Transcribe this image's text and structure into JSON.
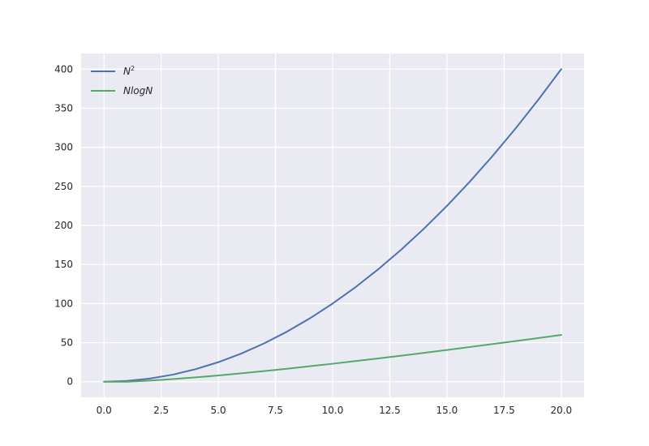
{
  "chart_data": {
    "type": "line",
    "title": "",
    "xlabel": "",
    "ylabel": "",
    "xlim": [
      -1,
      21
    ],
    "ylim": [
      -20,
      420
    ],
    "x_ticks": [
      0,
      2.5,
      5,
      7.5,
      10,
      12.5,
      15,
      17.5,
      20
    ],
    "x_tick_labels": [
      "0.0",
      "2.5",
      "5.0",
      "7.5",
      "10.0",
      "12.5",
      "15.0",
      "17.5",
      "20.0"
    ],
    "y_ticks": [
      0,
      50,
      100,
      150,
      200,
      250,
      300,
      350,
      400
    ],
    "y_tick_labels": [
      "0",
      "50",
      "100",
      "150",
      "200",
      "250",
      "300",
      "350",
      "400"
    ],
    "grid": true,
    "legend_position": "top-left",
    "x": [
      0,
      1,
      2,
      3,
      4,
      5,
      6,
      7,
      8,
      9,
      10,
      11,
      12,
      13,
      14,
      15,
      16,
      17,
      18,
      19,
      20
    ],
    "series": [
      {
        "name": "N",
        "name_superscript": "2",
        "color": "#4c72b0",
        "values": [
          0,
          1,
          4,
          9,
          16,
          25,
          36,
          49,
          64,
          81,
          100,
          121,
          144,
          169,
          196,
          225,
          256,
          289,
          324,
          361,
          400
        ]
      },
      {
        "name": "NlogN",
        "color": "#55a868",
        "values": [
          0,
          0,
          1.4,
          3.3,
          5.5,
          8.0,
          10.8,
          13.6,
          16.6,
          19.8,
          23.0,
          26.4,
          29.8,
          33.3,
          36.9,
          40.6,
          44.4,
          48.2,
          52.0,
          55.9,
          59.9
        ]
      }
    ]
  }
}
